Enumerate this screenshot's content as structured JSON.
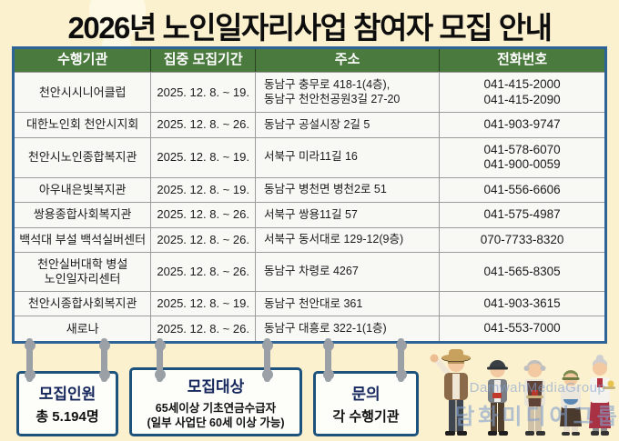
{
  "title": "2026년 노인일자리사업 참여자 모집 안내",
  "table": {
    "headers": [
      "수행기관",
      "집중 모집기간",
      "주소",
      "전화번호"
    ],
    "rows": [
      {
        "org": [
          "천안시시니어클럽"
        ],
        "period": "2025. 12. 8. ~ 19.",
        "address": [
          "동남구 충무로 418-1(4층),",
          "동남구 천안천공원3길 27-20"
        ],
        "phones": [
          "041-415-2000",
          "041-415-2090"
        ]
      },
      {
        "org": [
          "대한노인회 천안시지회"
        ],
        "period": "2025. 12. 8. ~ 26.",
        "address": [
          "동남구 공설시장 2길 5"
        ],
        "phones": [
          "041-903-9747"
        ]
      },
      {
        "org": [
          "천안시노인종합복지관"
        ],
        "period": "2025. 12. 8. ~ 19.",
        "address": [
          "서북구 미라11길 16"
        ],
        "phones": [
          "041-578-6070",
          "041-900-0059"
        ]
      },
      {
        "org": [
          "아우내은빛복지관"
        ],
        "period": "2025. 12. 8. ~ 19.",
        "address": [
          "동남구 병천면 병천2로 51"
        ],
        "phones": [
          "041-556-6606"
        ]
      },
      {
        "org": [
          "쌍용종합사회복지관"
        ],
        "period": "2025. 12. 8. ~ 26.",
        "address": [
          "서북구 쌍용11길 57"
        ],
        "phones": [
          "041-575-4987"
        ]
      },
      {
        "org": [
          "백석대 부설 백석실버센터"
        ],
        "period": "2025. 12. 8. ~ 26.",
        "address": [
          "서북구 동서대로 129-12(9층)"
        ],
        "phones": [
          "070-7733-8320"
        ]
      },
      {
        "org": [
          "천안실버대학 병설",
          "노인일자리센터"
        ],
        "period": "2025. 12. 8. ~ 26.",
        "address": [
          "동남구 차령로 4267"
        ],
        "phones": [
          "041-565-8305"
        ]
      },
      {
        "org": [
          "천안시종합사회복지관"
        ],
        "period": "2025. 12. 8. ~ 19.",
        "address": [
          "동남구 천안대로 361"
        ],
        "phones": [
          "041-903-3615"
        ]
      },
      {
        "org": [
          "새로나"
        ],
        "period": "2025. 12. 8. ~ 26.",
        "address": [
          "동남구 대흥로 322-1(1층)"
        ],
        "phones": [
          "041-553-7000"
        ]
      }
    ]
  },
  "info_boxes": [
    {
      "title": "모집인원",
      "lines": [
        "총 5.194명"
      ]
    },
    {
      "title": "모집대상",
      "lines": [
        "65세이상 기초연금수급자",
        "(일부 사업단 60세 이상 가능)"
      ]
    },
    {
      "title": "문의",
      "lines": [
        "각 수행기관"
      ]
    }
  ],
  "watermark": {
    "line1": "DamwahMediaGroup",
    "line2": "담화미디어그룹"
  },
  "colors": {
    "background": "#fbf1cf",
    "header_green": "#4b7a3f",
    "table_border_blue": "#2d6396",
    "box_border_blue": "#1d527c",
    "box_title_navy": "#15275c",
    "connector_gray": "#9aa0a6"
  }
}
